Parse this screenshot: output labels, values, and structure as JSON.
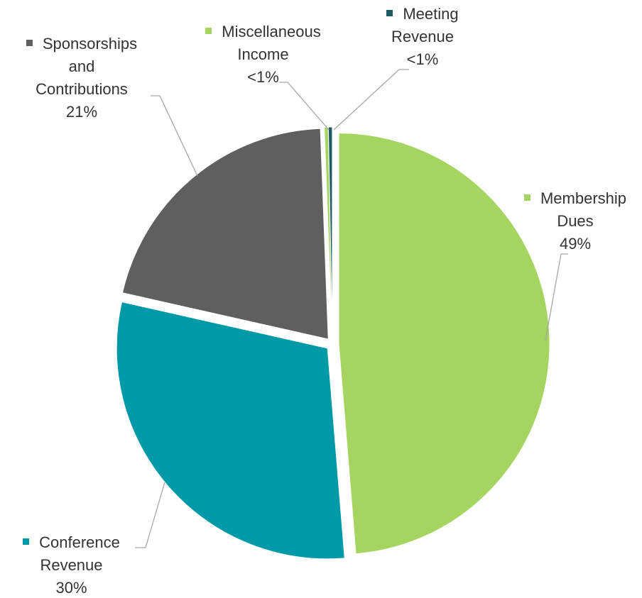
{
  "chart_data": {
    "type": "pie",
    "categories": [
      "Membership Dues",
      "Conference Revenue",
      "Sponsorships and Contributions",
      "Miscellaneous Income",
      "Meeting Revenue"
    ],
    "values": [
      49,
      30,
      21,
      0.3,
      0.3
    ],
    "value_labels": [
      "49%",
      "30%",
      "21%",
      "<1%",
      "<1%"
    ],
    "colors": [
      "#a5d461",
      "#0099a8",
      "#5f5f5f",
      "#a5d461",
      "#1e5a62"
    ]
  }
}
